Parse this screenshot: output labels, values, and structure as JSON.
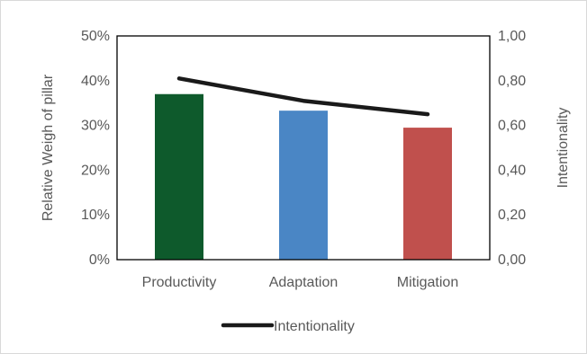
{
  "chart_data": {
    "type": "bar",
    "categories": [
      "Productivity",
      "Adaptation",
      "Mitigation"
    ],
    "bars": {
      "values": [
        0.37,
        0.333,
        0.295
      ],
      "colors": [
        "#0e5a2c",
        "#4a86c5",
        "#c0504d"
      ]
    },
    "line": {
      "name": "Intentionality",
      "values": [
        0.81,
        0.71,
        0.65
      ],
      "color": "#1a1a1a"
    },
    "left_axis": {
      "label": "Relative Weigh of pillar",
      "ylim": [
        0,
        0.5
      ],
      "ticks": [
        "0%",
        "10%",
        "20%",
        "30%",
        "40%",
        "50%"
      ]
    },
    "right_axis": {
      "label": "Intentionality",
      "ylim": [
        0,
        1.0
      ],
      "ticks": [
        "0,00",
        "0,20",
        "0,40",
        "0,60",
        "0,80",
        "1,00"
      ]
    },
    "legend": {
      "placement": "bottom",
      "entries": [
        "Intentionality"
      ]
    },
    "grid": false
  }
}
